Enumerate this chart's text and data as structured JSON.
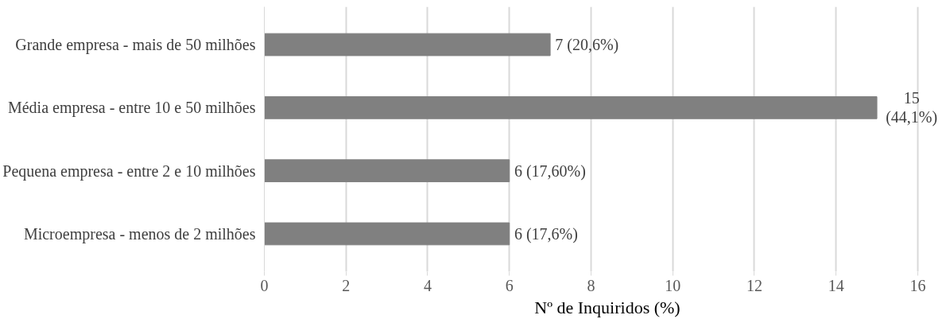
{
  "chart_data": {
    "type": "bar",
    "orientation": "horizontal",
    "xlabel": "Nº de Inquiridos (%)",
    "categories": [
      "Grande empresa - mais de 50 milhões",
      "Média empresa - entre 10 e 50 milhões",
      "Pequena empresa - entre 2 e 10 milhões",
      "Microempresa - menos de 2 milhões"
    ],
    "values": [
      7,
      15,
      6,
      6
    ],
    "value_labels": [
      "7 (20,6%)",
      "15 (44,1%)",
      "6 (17,60%)",
      "6 (17,6%)"
    ],
    "color": "#808080",
    "xlim": [
      0,
      16
    ],
    "xticks": [
      0,
      2,
      4,
      6,
      8,
      10,
      12,
      14,
      16
    ],
    "grid": "x"
  }
}
